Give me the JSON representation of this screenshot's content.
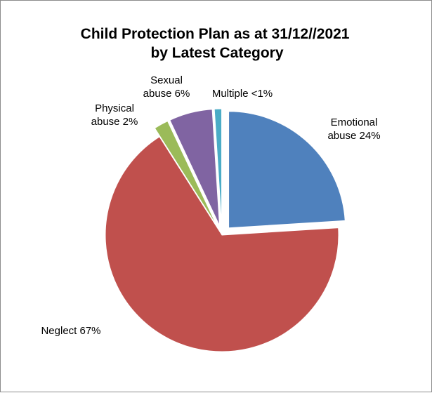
{
  "chart_data": {
    "type": "pie",
    "title_lines": [
      "Child Protection Plan as at 31/12//2021",
      "by Latest Category"
    ],
    "start_angle_deg": 0,
    "direction": "clockwise",
    "exploded": true,
    "legend": "none",
    "slices": [
      {
        "id": "emotional",
        "name": "Emotional abuse",
        "label_lines": [
          "Emotional",
          "abuse 24%"
        ],
        "value": 24,
        "color": "#4F81BD"
      },
      {
        "id": "neglect",
        "name": "Neglect",
        "label_lines": [
          "Neglect 67%"
        ],
        "value": 67,
        "color": "#C0504D"
      },
      {
        "id": "physical",
        "name": "Physical abuse",
        "label_lines": [
          "Physical",
          "abuse 2%"
        ],
        "value": 2,
        "color": "#9BBB59"
      },
      {
        "id": "sexual",
        "name": "Sexual abuse",
        "label_lines": [
          "Sexual",
          "abuse 6%"
        ],
        "value": 6,
        "color": "#8064A2"
      },
      {
        "id": "multiple",
        "name": "Multiple",
        "label_lines": [
          "Multiple <1%"
        ],
        "value": 1,
        "color": "#4BACC6"
      }
    ]
  }
}
